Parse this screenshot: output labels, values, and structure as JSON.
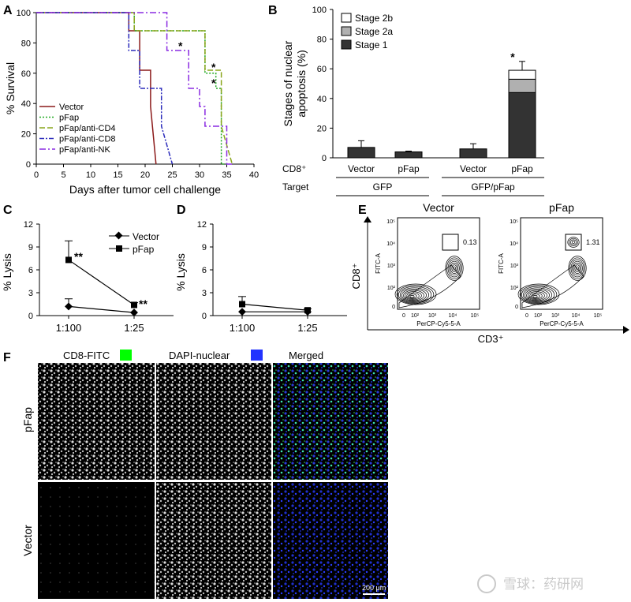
{
  "panels": {
    "A": "A",
    "B": "B",
    "C": "C",
    "D": "D",
    "E": "E",
    "F": "F"
  },
  "panelA": {
    "ylabel": "% Survival",
    "xlabel": "Days after tumor cell challenge",
    "yticks": [
      "0",
      "20",
      "40",
      "60",
      "80",
      "100"
    ],
    "xticks": [
      "0",
      "5",
      "10",
      "15",
      "20",
      "25",
      "30",
      "35",
      "40"
    ],
    "legend": [
      "Vector",
      "pFap",
      "pFap/anti-CD4",
      "pFap/anti-CD8",
      "pFap/anti-NK"
    ],
    "stars": [
      "*",
      "*",
      "*"
    ]
  },
  "panelB": {
    "ylabel_line1": "Stages of nuclear",
    "ylabel_line2": "apoptosis (%)",
    "yticks": [
      "0",
      "20",
      "40",
      "60",
      "80",
      "100"
    ],
    "legend": [
      "Stage 2b",
      "Stage 2a",
      "Stage 1"
    ],
    "row1_label": "CD8⁺",
    "row2_label": "Target",
    "cd8": [
      "Vector",
      "pFap",
      "Vector",
      "pFap"
    ],
    "targets": [
      "GFP",
      "GFP/pFap"
    ],
    "star": "*"
  },
  "panelC": {
    "ylabel": "% Lysis",
    "yticks": [
      "0",
      "3",
      "6",
      "9",
      "12"
    ],
    "xticks": [
      "1:100",
      "1:25"
    ],
    "legend": [
      "Vector",
      "pFap"
    ],
    "stars": [
      "**",
      "**"
    ]
  },
  "panelD": {
    "ylabel": "% Lysis",
    "yticks": [
      "0",
      "3",
      "6",
      "9",
      "12"
    ],
    "xticks": [
      "1:100",
      "1:25"
    ]
  },
  "panelE": {
    "titles": [
      "Vector",
      "pFap"
    ],
    "gate_values": [
      "0.13",
      "1.31"
    ],
    "y_axis": "FITC-A",
    "x_axis": "PerCP-Cy5-5-A",
    "outer_y": "CD8⁺",
    "outer_x": "CD3⁺",
    "ticks": [
      "0",
      "10²",
      "10³",
      "10⁴",
      "10⁵"
    ],
    "yticks": [
      "10⁵",
      "10⁴",
      "10³",
      "10²",
      "0"
    ]
  },
  "panelF": {
    "columns": [
      "CD8-FITC",
      "DAPI-nuclear",
      "Merged"
    ],
    "rows": [
      "pFap",
      "Vector"
    ],
    "scalebar": "200 μm",
    "watermark": "雪球：药研网",
    "colors": {
      "fitc": "#00ff00",
      "dapi": "#2233ff"
    }
  },
  "chart_data": [
    {
      "type": "line",
      "title": "",
      "xlabel": "Days after tumor cell challenge",
      "ylabel": "% Survival",
      "xlim": [
        0,
        40
      ],
      "ylim": [
        0,
        100
      ],
      "series": [
        {
          "name": "Vector",
          "color": "#8b1a1a",
          "x": [
            0,
            17,
            17,
            19,
            19,
            21,
            21,
            22
          ],
          "y": [
            100,
            100,
            88,
            88,
            62,
            62,
            38,
            0
          ]
        },
        {
          "name": "pFap",
          "color": "#22aa22",
          "x": [
            0,
            18,
            18,
            31,
            31,
            33,
            33,
            34,
            34,
            35
          ],
          "y": [
            100,
            100,
            88,
            88,
            60,
            60,
            50,
            50,
            0,
            0
          ]
        },
        {
          "name": "pFap/anti-CD4",
          "color": "#8aa51c",
          "x": [
            0,
            18,
            18,
            31,
            31,
            34,
            34,
            36
          ],
          "y": [
            100,
            100,
            88,
            88,
            62,
            62,
            25,
            0
          ]
        },
        {
          "name": "pFap/anti-CD8",
          "color": "#2b2bbb",
          "x": [
            0,
            17,
            17,
            19,
            19,
            23,
            23,
            25
          ],
          "y": [
            100,
            100,
            75,
            75,
            50,
            50,
            25,
            0
          ]
        },
        {
          "name": "pFap/anti-NK",
          "color": "#8a2be2",
          "x": [
            0,
            24,
            24,
            28,
            28,
            30,
            30,
            31,
            31,
            35,
            35,
            36
          ],
          "y": [
            100,
            100,
            75,
            75,
            50,
            50,
            38,
            38,
            25,
            25,
            0,
            0
          ]
        }
      ]
    },
    {
      "type": "bar",
      "stacked": true,
      "ylabel": "Stages of nuclear apoptosis (%)",
      "ylim": [
        0,
        100
      ],
      "categories": [
        "Vector/GFP",
        "pFap/GFP",
        "Vector/GFP-pFap",
        "pFap/GFP-pFap"
      ],
      "series": [
        {
          "name": "Stage 1",
          "color": "#333333",
          "values": [
            7,
            4,
            6,
            44
          ],
          "errors": [
            4.5,
            0.5,
            3.5,
            0
          ]
        },
        {
          "name": "Stage 2a",
          "color": "#b0b0b0",
          "values": [
            0,
            0,
            0,
            9
          ],
          "errors": [
            0,
            0,
            0,
            0
          ]
        },
        {
          "name": "Stage 2b",
          "color": "#ffffff",
          "values": [
            0,
            0,
            0,
            6
          ],
          "errors": [
            0,
            0,
            0,
            6
          ]
        }
      ]
    },
    {
      "type": "line",
      "ylabel": "% Lysis",
      "categories": [
        "1:100",
        "1:25"
      ],
      "ylim": [
        0,
        12
      ],
      "series": [
        {
          "name": "Vector",
          "marker": "diamond",
          "values": [
            1.2,
            0.4
          ],
          "errors": [
            1.0,
            0
          ]
        },
        {
          "name": "pFap",
          "marker": "square",
          "values": [
            7.3,
            1.4
          ],
          "errors": [
            2.5,
            0.3
          ]
        }
      ]
    },
    {
      "type": "line",
      "ylabel": "% Lysis",
      "categories": [
        "1:100",
        "1:25"
      ],
      "ylim": [
        0,
        12
      ],
      "series": [
        {
          "name": "Vector",
          "marker": "diamond",
          "values": [
            0.5,
            0.5
          ],
          "errors": [
            0,
            0
          ]
        },
        {
          "name": "pFap",
          "marker": "square",
          "values": [
            1.5,
            0.7
          ],
          "errors": [
            1.0,
            0.2
          ]
        }
      ]
    }
  ]
}
